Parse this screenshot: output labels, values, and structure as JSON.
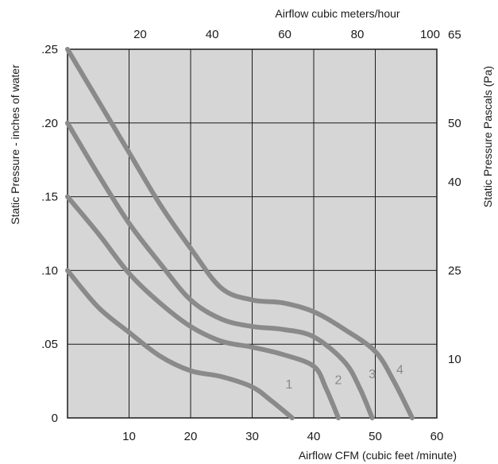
{
  "chart_data": {
    "type": "line",
    "title": "",
    "xlabel": "Airflow  CFM (cubic feet /minute)",
    "ylabel": "Static Pressure - inches of water",
    "x2label": "Airflow cubic meters/hour",
    "y2label": "Static Pressure Pascals (Pa)",
    "xlim": [
      0,
      60
    ],
    "ylim": [
      0,
      0.25
    ],
    "grid": true,
    "x_ticks": [
      {
        "value": 10,
        "label": "10"
      },
      {
        "value": 20,
        "label": "20"
      },
      {
        "value": 30,
        "label": "30"
      },
      {
        "value": 40,
        "label": "40"
      },
      {
        "value": 50,
        "label": "50"
      },
      {
        "value": 60,
        "label": "60"
      }
    ],
    "y_ticks": [
      {
        "value": 0,
        "label": "0"
      },
      {
        "value": 0.05,
        "label": ".05"
      },
      {
        "value": 0.1,
        "label": ".10"
      },
      {
        "value": 0.15,
        "label": ".15"
      },
      {
        "value": 0.2,
        "label": ".20"
      },
      {
        "value": 0.25,
        "label": ".25"
      }
    ],
    "x2_ticks": [
      {
        "value": 11.8,
        "label": "20"
      },
      {
        "value": 23.5,
        "label": "40"
      },
      {
        "value": 35.3,
        "label": "60"
      },
      {
        "value": 47.1,
        "label": "80"
      },
      {
        "value": 58.9,
        "label": "100"
      }
    ],
    "y2_ticks": [
      {
        "value": 0.04,
        "label": "10"
      },
      {
        "value": 0.1,
        "label": "25"
      },
      {
        "value": 0.16,
        "label": "40"
      },
      {
        "value": 0.2,
        "label": "50"
      },
      {
        "value": 0.26,
        "label": "65"
      }
    ],
    "series": [
      {
        "name": "1",
        "label_at": [
          36,
          0.02
        ],
        "x": [
          0,
          5,
          10,
          15,
          20,
          25,
          30,
          33,
          36.5
        ],
        "y": [
          0.1,
          0.075,
          0.058,
          0.042,
          0.032,
          0.028,
          0.021,
          0.012,
          0
        ]
      },
      {
        "name": "2",
        "label_at": [
          44,
          0.023
        ],
        "x": [
          0,
          5,
          10,
          15,
          20,
          25,
          30,
          35,
          40,
          42,
          44
        ],
        "y": [
          0.15,
          0.125,
          0.098,
          0.078,
          0.062,
          0.052,
          0.048,
          0.043,
          0.035,
          0.02,
          0
        ]
      },
      {
        "name": "3",
        "label_at": [
          49.5,
          0.027
        ],
        "x": [
          0,
          5,
          10,
          15,
          20,
          25,
          30,
          35,
          40,
          45,
          47.5,
          49.5
        ],
        "y": [
          0.2,
          0.165,
          0.132,
          0.105,
          0.08,
          0.067,
          0.062,
          0.06,
          0.055,
          0.038,
          0.02,
          0
        ]
      },
      {
        "name": "4",
        "label_at": [
          54,
          0.03
        ],
        "x": [
          0,
          5,
          10,
          15,
          20,
          25,
          30,
          35,
          40,
          45,
          50,
          53,
          56
        ],
        "y": [
          0.25,
          0.215,
          0.18,
          0.145,
          0.115,
          0.088,
          0.08,
          0.078,
          0.072,
          0.06,
          0.045,
          0.025,
          0
        ]
      }
    ]
  }
}
